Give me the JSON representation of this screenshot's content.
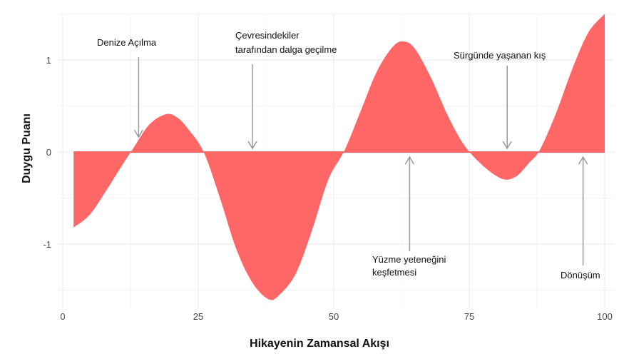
{
  "chart_data": {
    "type": "area",
    "title": "",
    "xlabel": "Hikayenin Zamansal Akışı",
    "ylabel": "Duygu Puanı",
    "xlim": [
      0,
      100
    ],
    "ylim": [
      -1.55,
      1.55
    ],
    "xticks": [
      {
        "value": 0,
        "label": "0"
      },
      {
        "value": 25,
        "label": "25"
      },
      {
        "value": 50,
        "label": "50"
      },
      {
        "value": 75,
        "label": "75"
      },
      {
        "value": 100,
        "label": "100"
      }
    ],
    "yticks": [
      {
        "value": 1,
        "label": "1"
      },
      {
        "value": 0,
        "label": "0"
      },
      {
        "value": -1,
        "label": "-1"
      }
    ],
    "grid": true,
    "fill_color": "#ff6666",
    "series": [
      {
        "x": [
          2,
          5,
          8,
          11,
          13,
          16,
          19,
          21,
          23,
          26,
          29,
          32,
          35,
          38,
          40,
          43,
          46,
          49,
          52,
          55,
          58,
          61,
          63,
          65,
          68,
          71,
          74,
          77,
          80,
          82,
          84,
          86,
          88,
          91,
          94,
          97,
          100
        ],
        "values": [
          -0.82,
          -0.68,
          -0.42,
          -0.14,
          0.04,
          0.3,
          0.41,
          0.38,
          0.26,
          0.0,
          -0.5,
          -1.05,
          -1.42,
          -1.6,
          -1.55,
          -1.32,
          -0.85,
          -0.3,
          0.02,
          0.45,
          0.88,
          1.15,
          1.2,
          1.12,
          0.8,
          0.4,
          0.08,
          -0.12,
          -0.26,
          -0.3,
          -0.25,
          -0.12,
          0.02,
          0.42,
          0.9,
          1.3,
          1.5
        ]
      }
    ],
    "annotations": [
      {
        "label": "Denize Açılma",
        "x": 14,
        "direction": "down"
      },
      {
        "label": "Çevresindekiler tarafından dalga geçilme",
        "x": 35,
        "direction": "down"
      },
      {
        "label": "Yüzme yeteneğini keşfetmesi",
        "x": 64,
        "direction": "up"
      },
      {
        "label": "Sürgünde yaşanan kış",
        "x": 82,
        "direction": "down"
      },
      {
        "label": "Dönüşüm",
        "x": 96,
        "direction": "up"
      }
    ]
  }
}
